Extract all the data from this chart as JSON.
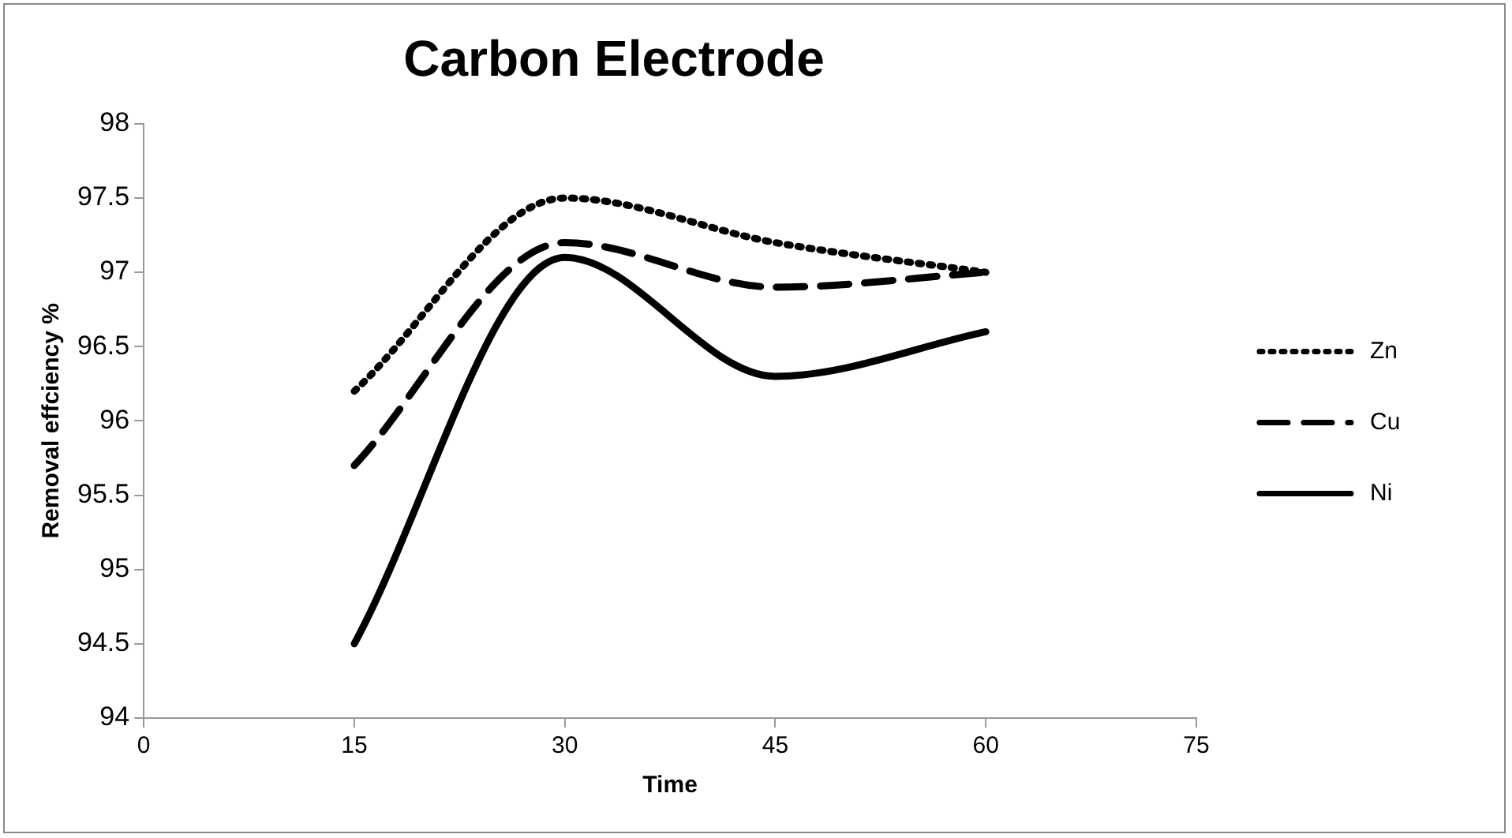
{
  "chart_data": {
    "type": "line",
    "title": "Carbon Electrode",
    "xlabel": "Time",
    "ylabel": "Removal effciency %",
    "x": [
      15,
      30,
      45,
      60
    ],
    "series": [
      {
        "name": "Zn",
        "color": "#000000",
        "line_style": "dotted",
        "values": [
          96.2,
          97.5,
          97.2,
          97.0
        ]
      },
      {
        "name": "Cu",
        "color": "#000000",
        "line_style": "dashed",
        "values": [
          95.7,
          97.2,
          96.9,
          97.0
        ]
      },
      {
        "name": "Ni",
        "color": "#000000",
        "line_style": "solid",
        "values": [
          94.5,
          97.1,
          96.3,
          96.6
        ]
      }
    ],
    "xlim": [
      0,
      75
    ],
    "xticks": [
      0,
      15,
      30,
      45,
      60,
      75
    ],
    "ylim": [
      94,
      98
    ],
    "yticks": [
      94,
      94.5,
      95,
      95.5,
      96,
      96.5,
      97,
      97.5,
      98
    ],
    "grid": false,
    "legend": "right",
    "marker": "none"
  }
}
